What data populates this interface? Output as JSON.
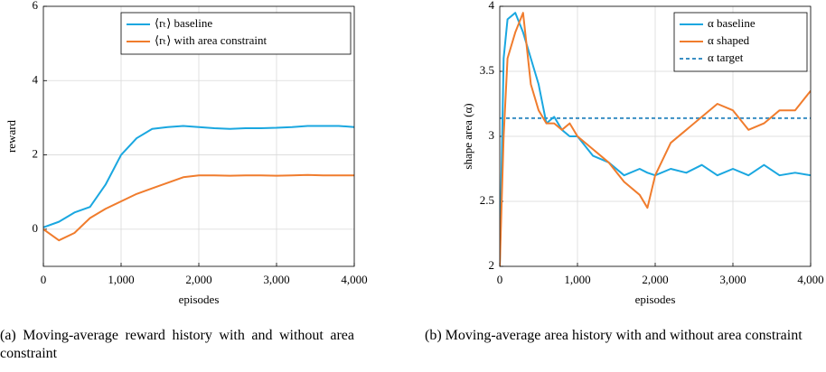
{
  "chart_data": [
    {
      "type": "line",
      "caption": "(a) Moving-average reward history with and without area constraint",
      "xlabel": "episodes",
      "ylabel": "reward",
      "x": [
        0,
        200,
        400,
        600,
        800,
        1000,
        1200,
        1400,
        1600,
        1800,
        2000,
        2200,
        2400,
        2600,
        2800,
        3000,
        3200,
        3400,
        3600,
        3800,
        4000
      ],
      "series": [
        {
          "name": "⟨rₜ⟩ baseline",
          "color": "#1aa7e0",
          "values": [
            0.05,
            0.2,
            0.45,
            0.6,
            1.2,
            2.0,
            2.45,
            2.7,
            2.75,
            2.78,
            2.75,
            2.72,
            2.7,
            2.72,
            2.72,
            2.73,
            2.75,
            2.78,
            2.78,
            2.78,
            2.75
          ]
        },
        {
          "name": "⟨rₜ⟩ with area constraint",
          "color": "#f07c2d",
          "values": [
            0,
            -0.3,
            -0.1,
            0.3,
            0.55,
            0.75,
            0.95,
            1.1,
            1.25,
            1.4,
            1.45,
            1.45,
            1.44,
            1.45,
            1.45,
            1.44,
            1.45,
            1.46,
            1.45,
            1.45,
            1.45
          ]
        }
      ],
      "xlim": [
        0,
        4000
      ],
      "xticks": [
        0,
        {
          "value": 1000,
          "label": "1,000"
        },
        {
          "value": 2000,
          "label": "2,000"
        },
        {
          "value": 3000,
          "label": "3,000"
        },
        {
          "value": 4000,
          "label": "4,000"
        }
      ],
      "ylim": [
        -1,
        6
      ],
      "yticks": [
        0,
        2,
        4,
        6
      ],
      "grid": true,
      "legend": "top-right"
    },
    {
      "type": "line",
      "caption": "(b) Moving-average area history with and without area constraint",
      "xlabel": "episodes",
      "ylabel": "shape area (α)",
      "x": [
        0,
        50,
        100,
        200,
        300,
        400,
        500,
        600,
        700,
        800,
        900,
        1000,
        1200,
        1400,
        1600,
        1800,
        1900,
        2000,
        2200,
        2400,
        2600,
        2800,
        3000,
        3200,
        3400,
        3600,
        3800,
        4000
      ],
      "series": [
        {
          "name": "α baseline",
          "color": "#1aa7e0",
          "values": [
            2,
            3.6,
            3.9,
            3.95,
            3.8,
            3.6,
            3.4,
            3.1,
            3.15,
            3.05,
            3.0,
            3.0,
            2.85,
            2.8,
            2.7,
            2.75,
            2.72,
            2.7,
            2.75,
            2.72,
            2.78,
            2.7,
            2.75,
            2.7,
            2.78,
            2.7,
            2.72,
            2.7
          ]
        },
        {
          "name": "α shaped",
          "color": "#f07c2d",
          "values": [
            2,
            3.0,
            3.6,
            3.8,
            3.95,
            3.4,
            3.2,
            3.1,
            3.1,
            3.05,
            3.1,
            3.0,
            2.9,
            2.8,
            2.65,
            2.55,
            2.45,
            2.7,
            2.95,
            3.05,
            3.15,
            3.25,
            3.2,
            3.05,
            3.1,
            3.2,
            3.2,
            3.35
          ]
        }
      ],
      "hline": {
        "name": "α target",
        "value": 3.14,
        "color": "#3a8fc4",
        "dashed": true
      },
      "xlim": [
        0,
        4000
      ],
      "xticks": [
        0,
        {
          "value": 1000,
          "label": "1,000"
        },
        {
          "value": 2000,
          "label": "2,000"
        },
        {
          "value": 3000,
          "label": "3,000"
        },
        {
          "value": 4000,
          "label": "4,000"
        }
      ],
      "ylim": [
        2,
        4
      ],
      "yticks": [
        2,
        2.5,
        3,
        3.5,
        4
      ],
      "grid": true,
      "legend": "top-right"
    }
  ]
}
